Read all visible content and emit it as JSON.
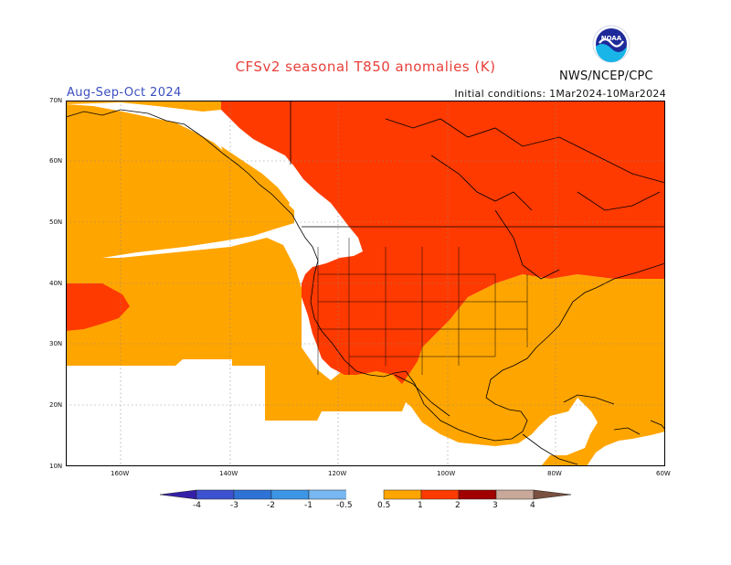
{
  "title": "CFSv2 seasonal T850 anomalies (K)",
  "period": "Aug-Sep-Oct 2024",
  "initial_conditions": "Initial conditions: 1Mar2024-10Mar2024",
  "agency": "NWS/NCEP/CPC",
  "logo_text": "NOAA",
  "lat_labels": [
    "70N",
    "60N",
    "50N",
    "40N",
    "30N",
    "20N",
    "10N"
  ],
  "lon_labels": [
    "160W",
    "140W",
    "120W",
    "100W",
    "80W",
    "60W"
  ],
  "colorbar": {
    "labels": [
      "-4",
      "-3",
      "-2",
      "-1",
      "-0.5",
      "0.5",
      "1",
      "2",
      "3",
      "4"
    ],
    "colors": [
      "#3420a8",
      "#3d52d0",
      "#2e72d6",
      "#3d95e6",
      "#78b8f2",
      "#ffffff",
      "#ffa500",
      "#ff3a00",
      "#a00000",
      "#c8a898",
      "#7a5040"
    ]
  },
  "colors": {
    "anomaly_0_5_1": "#ffa500",
    "anomaly_1_2": "#ff3a00",
    "neutral": "#ffffff",
    "title": "#e8403a",
    "period": "#3a4fc0"
  }
}
